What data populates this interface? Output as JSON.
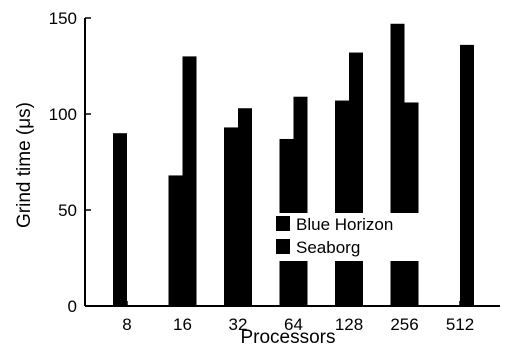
{
  "chart_data": {
    "type": "bar",
    "xlabel": "Processors",
    "ylabel": "Grind time (μs)",
    "ylim": [
      0,
      150
    ],
    "yticks": [
      0,
      50,
      100,
      150
    ],
    "categories": [
      "8",
      "16",
      "32",
      "64",
      "128",
      "256",
      "512"
    ],
    "series": [
      {
        "name": "Blue Horizon",
        "values": [
          90,
          68,
          93,
          87,
          107,
          147,
          null
        ],
        "color": "#000000"
      },
      {
        "name": "Seaborg",
        "values": [
          null,
          130,
          103,
          109,
          132,
          106,
          136
        ],
        "color": "#000000"
      }
    ],
    "grid": false,
    "legend_position": "center-right"
  }
}
